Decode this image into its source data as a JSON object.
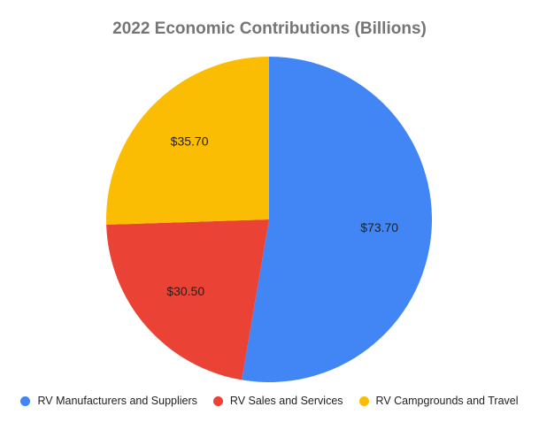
{
  "chart_data": {
    "type": "pie",
    "title": "2022 Economic Contributions (Billions)",
    "categories": [
      "RV Manufacturers and Suppliers",
      "RV Sales and Services",
      "RV Campgrounds and Travel"
    ],
    "values": [
      73.7,
      30.5,
      35.7
    ],
    "data_labels": [
      "$73.70",
      "$30.50",
      "$35.70"
    ],
    "colors": [
      "#4285f4",
      "#ea4335",
      "#fbbc04"
    ],
    "legend_position": "bottom"
  }
}
